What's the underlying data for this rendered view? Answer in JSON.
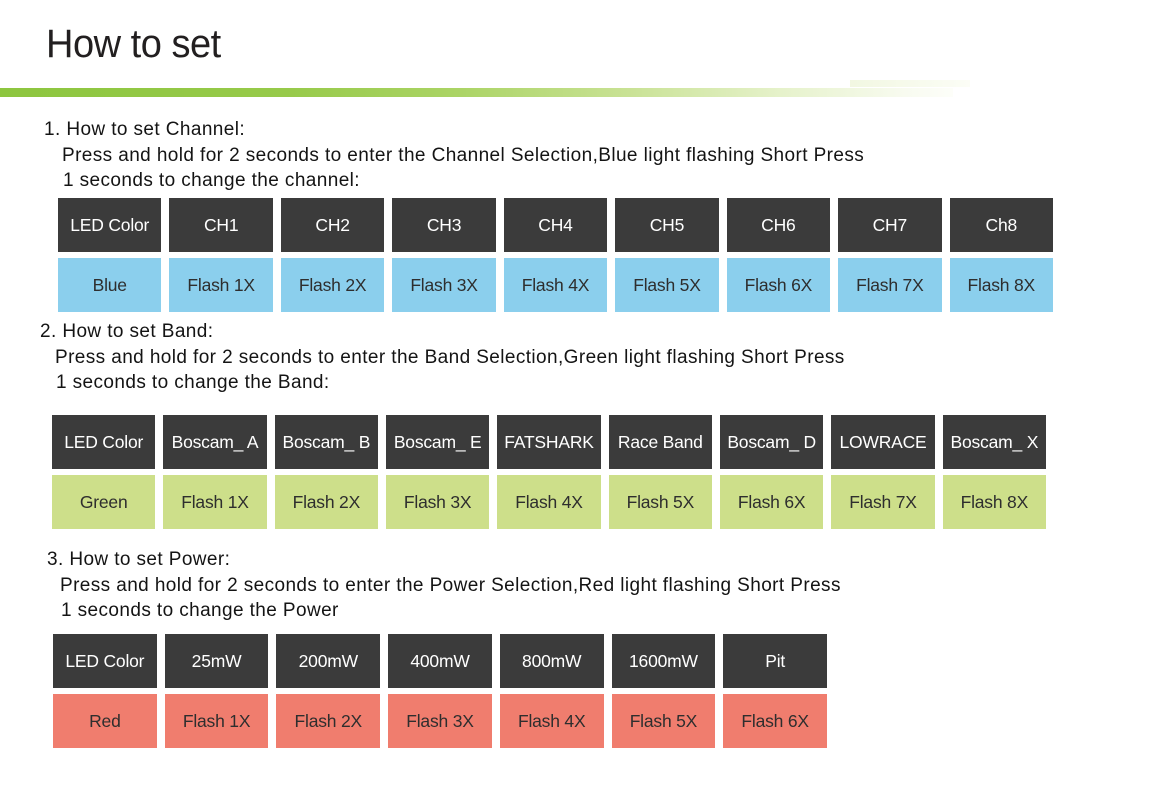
{
  "title": "How to set",
  "colors": {
    "header_bg": "#3b3b3b",
    "accent_green": "#8dc63f",
    "channel_row": "#8bcfed",
    "band_row": "#cddf8a",
    "power_row": "#f07d6e"
  },
  "sections": [
    {
      "heading": "1. How to set Channel:",
      "lines": [
        "Press and hold for 2 seconds to enter the Channel Selection,Blue light flashing Short Press",
        "1 seconds to change the channel:"
      ],
      "table": {
        "headers": [
          "LED Color",
          "CH1",
          "CH2",
          "CH3",
          "CH4",
          "CH5",
          "CH6",
          "CH7",
          "Ch8"
        ],
        "row": [
          "Blue",
          "Flash 1X",
          "Flash 2X",
          "Flash 3X",
          "Flash 4X",
          "Flash 5X",
          "Flash 6X",
          "Flash 7X",
          "Flash 8X"
        ],
        "row_color": "#8bcfed"
      }
    },
    {
      "heading": "2. How to set Band:",
      "lines": [
        "Press and hold for 2 seconds to enter the Band Selection,Green light flashing Short Press",
        "1 seconds to change the Band:"
      ],
      "table": {
        "headers": [
          "LED Color",
          "Boscam_ A",
          "Boscam_ B",
          "Boscam_ E",
          "FATSHARK",
          "Race Band",
          "Boscam_ D",
          "LOWRACE",
          "Boscam_ X"
        ],
        "row": [
          "Green",
          "Flash 1X",
          "Flash 2X",
          "Flash 3X",
          "Flash 4X",
          "Flash 5X",
          "Flash 6X",
          "Flash 7X",
          "Flash 8X"
        ],
        "row_color": "#cddf8a"
      }
    },
    {
      "heading": "3. How to set Power:",
      "lines": [
        "Press and hold for 2 seconds to enter the Power Selection,Red light flashing Short Press",
        "1 seconds to change the Power"
      ],
      "table": {
        "headers": [
          "LED Color",
          "25mW",
          "200mW",
          "400mW",
          "800mW",
          "1600mW",
          "Pit"
        ],
        "row": [
          "Red",
          "Flash 1X",
          "Flash 2X",
          "Flash 3X",
          "Flash 4X",
          "Flash 5X",
          "Flash 6X"
        ],
        "row_color": "#f07d6e"
      }
    }
  ]
}
